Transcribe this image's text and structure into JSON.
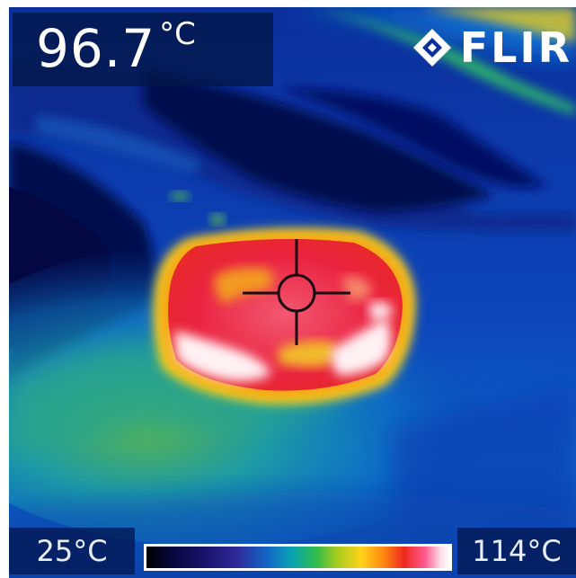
{
  "readout": {
    "value": "96.7",
    "unit": "°C"
  },
  "brand": {
    "name": "FLIR"
  },
  "scale": {
    "min_label": "25°C",
    "max_label": "114°C"
  },
  "colors": {
    "background": "#0a2fa8",
    "cold_region": "#050f55",
    "hot_region": "#ec2640",
    "hottest_region": "#fff0f4"
  },
  "icons": {
    "brand_mark": "flir-diamond-logo",
    "spot_meter": "crosshair-icon"
  }
}
